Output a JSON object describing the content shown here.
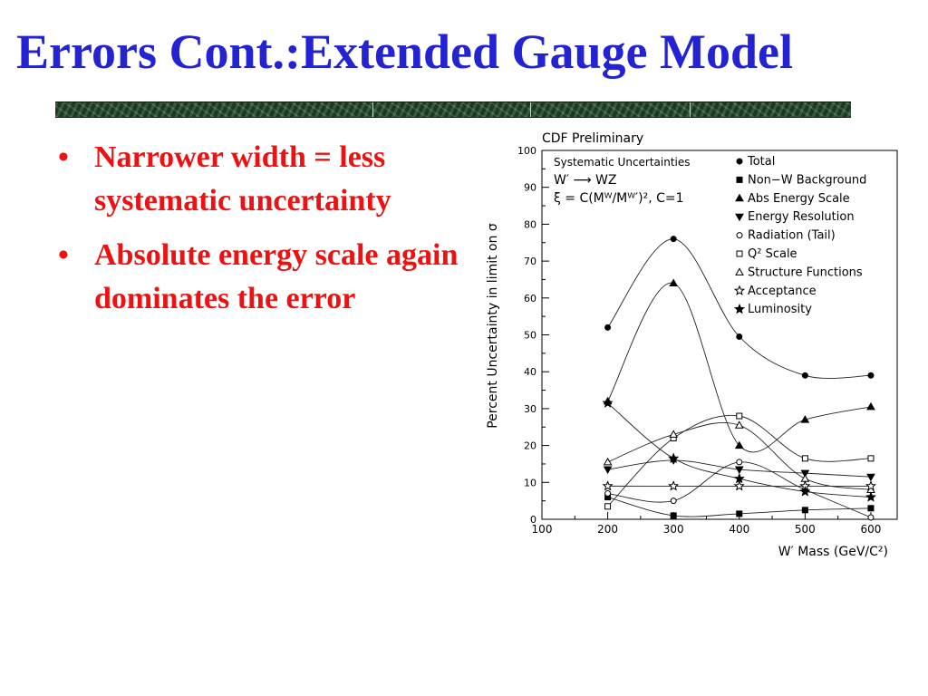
{
  "slide": {
    "title": "Errors Cont.:Extended Gauge Model",
    "bullets": [
      "Narrower width = less systematic uncertainty",
      "Absolute energy scale again dominates the error"
    ]
  },
  "colors": {
    "title": "#2323d2",
    "bullets": "#ee1111"
  },
  "chart_data": {
    "type": "line",
    "title": "CDF Preliminary",
    "xlabel": "W′ Mass (GeV/C²)",
    "ylabel": "Percent Uncertainty in limit on σ",
    "xlim": [
      100,
      640
    ],
    "ylim": [
      0,
      100
    ],
    "xticks": [
      100,
      200,
      300,
      400,
      500,
      600
    ],
    "yticks": [
      0,
      10,
      20,
      30,
      40,
      50,
      60,
      70,
      80,
      90,
      100
    ],
    "annotations": [
      "Systematic Uncertainties",
      "W′ ⟶ WZ",
      "ξ = C(Mᵂ/Mᵂ′)², C=1"
    ],
    "legend_position": "top-right",
    "grid": false,
    "x": [
      200,
      300,
      400,
      500,
      600
    ],
    "series": [
      {
        "name": "Total",
        "marker": "filled-circle",
        "values": [
          52,
          76,
          49.5,
          39,
          39
        ]
      },
      {
        "name": "Non−W Background",
        "marker": "filled-square",
        "values": [
          6,
          1,
          1.5,
          2.5,
          3
        ]
      },
      {
        "name": "Abs Energy Scale",
        "marker": "filled-triangle-up",
        "values": [
          32,
          64,
          20,
          27,
          30.5
        ]
      },
      {
        "name": "Energy Resolution",
        "marker": "filled-triangle-down",
        "values": [
          13.5,
          16,
          13.5,
          12.5,
          11.5
        ]
      },
      {
        "name": "Radiation (Tail)",
        "marker": "open-circle",
        "values": [
          7,
          5,
          15.5,
          8,
          0.5
        ]
      },
      {
        "name": "Q² Scale",
        "marker": "open-square",
        "values": [
          3.5,
          22,
          28,
          16.5,
          16.5
        ]
      },
      {
        "name": "Structure Functions",
        "marker": "open-triangle-up",
        "values": [
          15.5,
          23,
          25.5,
          11,
          8
        ]
      },
      {
        "name": "Acceptance",
        "marker": "open-star",
        "values": [
          9,
          9,
          9,
          9,
          9
        ]
      },
      {
        "name": "Luminosity",
        "marker": "filled-star",
        "values": [
          31.5,
          16.5,
          11,
          7.5,
          6
        ]
      }
    ]
  }
}
